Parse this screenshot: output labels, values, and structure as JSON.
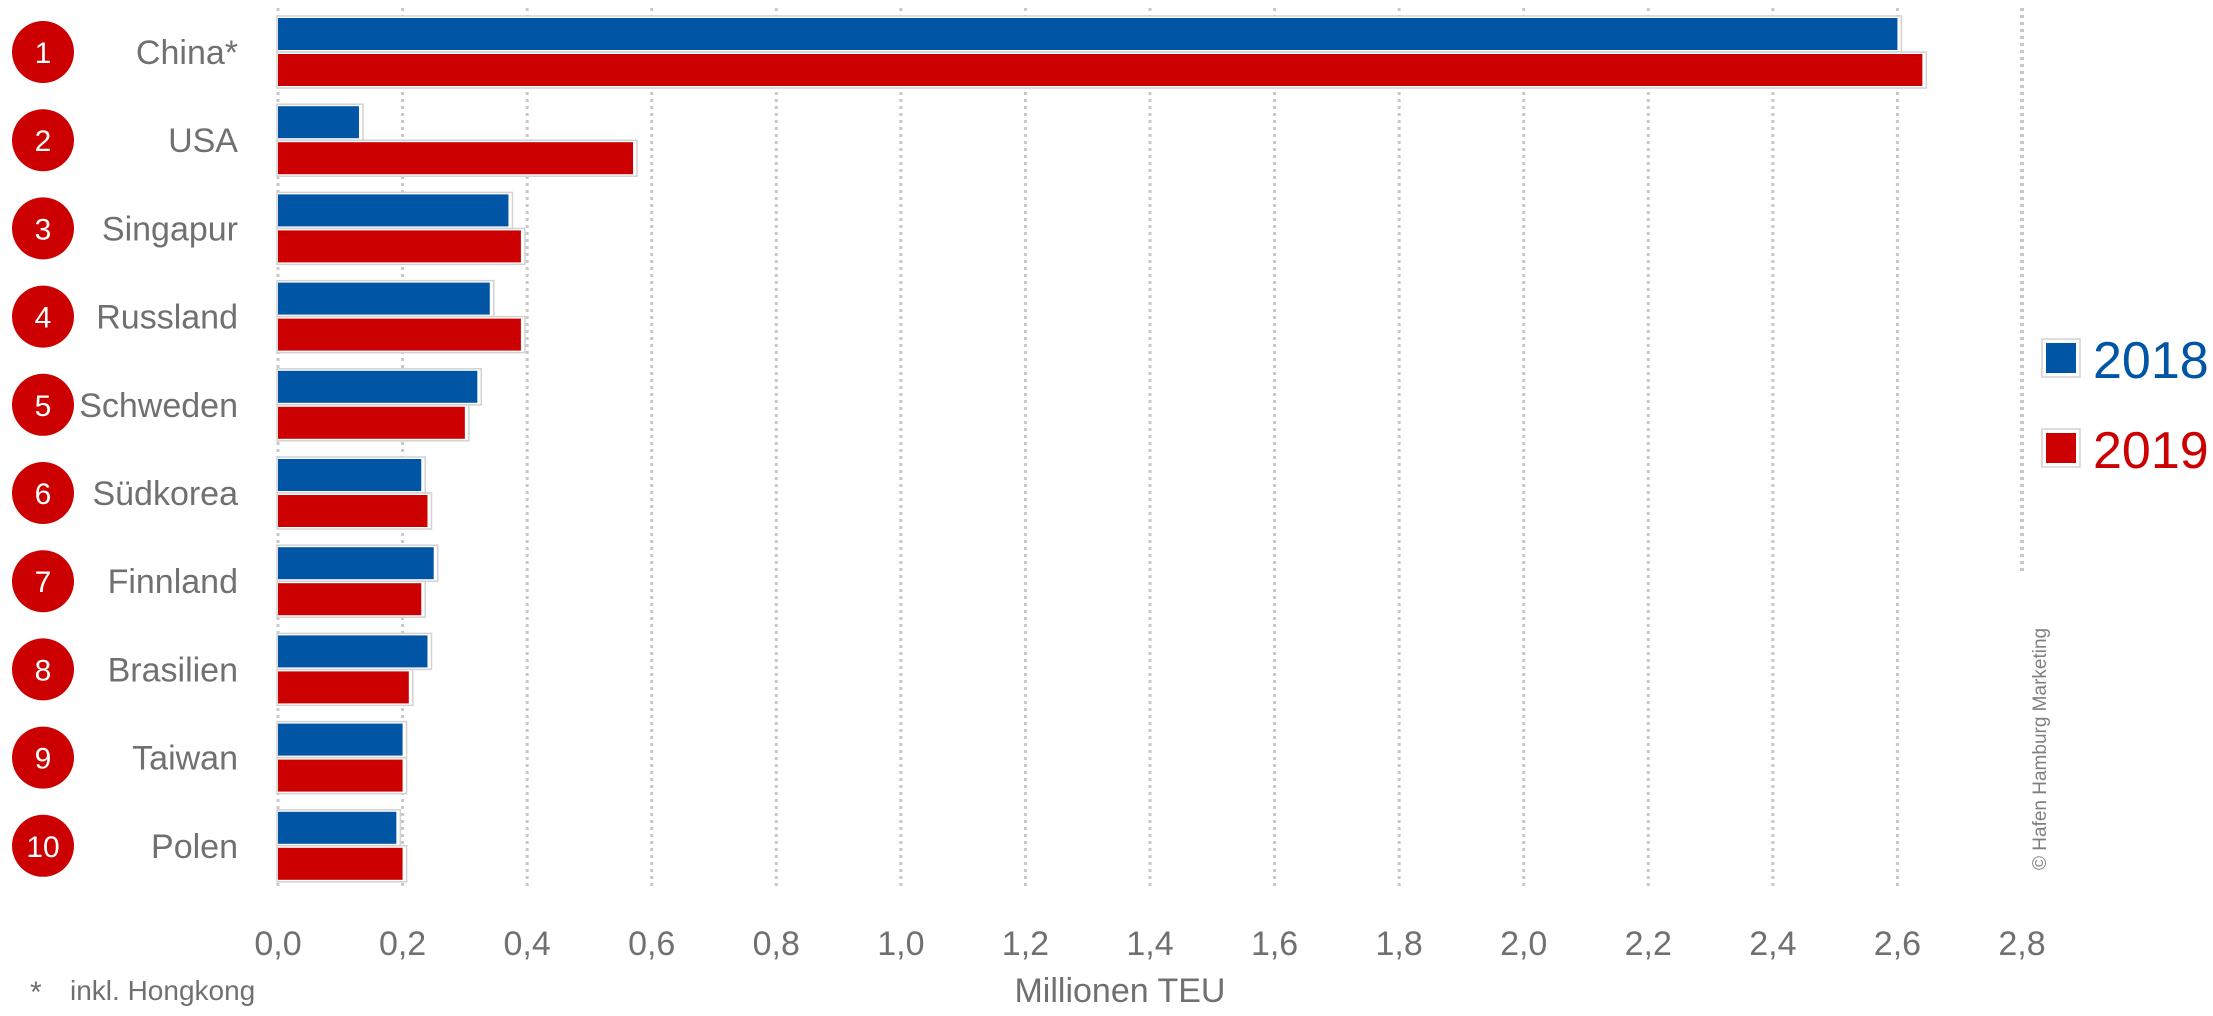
{
  "chart_data": {
    "type": "bar",
    "orientation": "horizontal",
    "categories": [
      "China*",
      "USA",
      "Singapur",
      "Russland",
      "Schweden",
      "Südkorea",
      "Finnland",
      "Brasilien",
      "Taiwan",
      "Polen"
    ],
    "ranks": [
      "1",
      "2",
      "3",
      "4",
      "5",
      "6",
      "7",
      "8",
      "9",
      "10"
    ],
    "series": [
      {
        "name": "2018",
        "color": "#0055a4",
        "values": [
          2.6,
          0.13,
          0.37,
          0.34,
          0.32,
          0.23,
          0.25,
          0.24,
          0.2,
          0.19
        ]
      },
      {
        "name": "2019",
        "color": "#cc0000",
        "values": [
          2.64,
          0.57,
          0.39,
          0.39,
          0.3,
          0.24,
          0.23,
          0.21,
          0.2,
          0.2
        ]
      }
    ],
    "xlabel": "Millionen TEU",
    "xlim": [
      0,
      2.8
    ],
    "xticks": [
      0,
      0.2,
      0.4,
      0.6,
      0.8,
      1.0,
      1.2,
      1.4,
      1.6,
      1.8,
      2.0,
      2.2,
      2.4,
      2.6,
      2.8
    ],
    "xtick_labels": [
      "0,0",
      "0,2",
      "0,4",
      "0,6",
      "0,8",
      "1,0",
      "1,2",
      "1,4",
      "1,6",
      "1,8",
      "2,0",
      "2,2",
      "2,4",
      "2,6",
      "2,8"
    ],
    "grid": true,
    "legend_position": "right",
    "footnote_marker": "*",
    "footnote_text": "inkl. Hongkong",
    "credit": "© Hafen Hamburg Marketing",
    "colors": {
      "rank_circle": "#cc0000",
      "category_label": "#707070",
      "axis_text": "#707070",
      "grid": "#c8c8c8"
    }
  }
}
